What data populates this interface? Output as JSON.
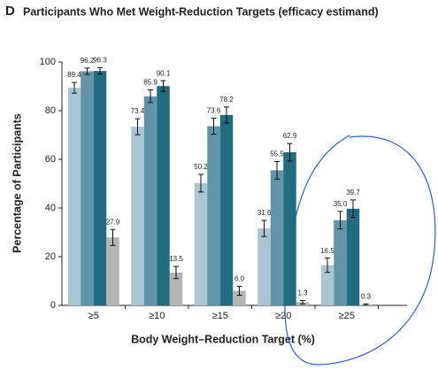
{
  "chart_data": {
    "type": "bar",
    "panel": "D",
    "title": "Participants Who Met Weight-Reduction Targets (efficacy estimand)",
    "y_label": "Percentage of Participants",
    "x_label": "Body Weight–Reduction Target (%)",
    "categories": [
      "≥5",
      "≥10",
      "≥15",
      "≥20",
      "≥25"
    ],
    "series": [
      {
        "color": "#aac6d2",
        "values": [
          89.4,
          73.4,
          50.2,
          31.6,
          16.5
        ],
        "value_labels": [
          "89.4",
          "73.4",
          "50.2",
          "31.6",
          "16.5"
        ],
        "errors": [
          2.2,
          3.3,
          3.6,
          3.3,
          2.9
        ]
      },
      {
        "color": "#5f94a9",
        "values": [
          96.2,
          85.9,
          73.6,
          55.5,
          35.0
        ],
        "value_labels": [
          "96.2",
          "85.9",
          "73.6",
          "55.5",
          "35.0"
        ],
        "errors": [
          1.3,
          2.6,
          3.3,
          3.6,
          3.6
        ]
      },
      {
        "color": "#216c80",
        "values": [
          96.3,
          90.1,
          78.2,
          62.9,
          39.7
        ],
        "value_labels": [
          "96.3",
          "90.1",
          "78.2",
          "62.9",
          "39.7"
        ],
        "errors": [
          1.3,
          2.2,
          3.3,
          3.6,
          3.6
        ]
      },
      {
        "color": "#b4b4b7",
        "values": [
          27.9,
          13.5,
          6.0,
          1.3,
          0.3
        ],
        "value_labels": [
          "27.9",
          "13.5",
          "6.0",
          "1.3",
          "0.3"
        ],
        "errors": [
          3.3,
          2.5,
          1.8,
          0.7,
          0.3
        ]
      }
    ],
    "ylim": [
      0,
      100
    ],
    "yticks": [
      0,
      20,
      40,
      60,
      80,
      100
    ],
    "grid": false
  }
}
